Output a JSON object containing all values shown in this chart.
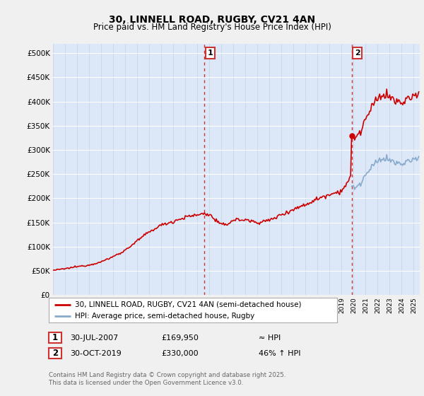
{
  "title_line1": "30, LINNELL ROAD, RUGBY, CV21 4AN",
  "title_line2": "Price paid vs. HM Land Registry's House Price Index (HPI)",
  "ylim": [
    0,
    520000
  ],
  "yticks": [
    0,
    50000,
    100000,
    150000,
    200000,
    250000,
    300000,
    350000,
    400000,
    450000,
    500000
  ],
  "ytick_labels": [
    "£0",
    "£50K",
    "£100K",
    "£150K",
    "£200K",
    "£250K",
    "£300K",
    "£350K",
    "£400K",
    "£450K",
    "£500K"
  ],
  "fig_bg_color": "#f0f0f0",
  "plot_bg_color": "#dce8f8",
  "grid_color": "#ffffff",
  "line1_color": "#cc0000",
  "line2_color": "#88aacc",
  "vline_color": "#cc3333",
  "point1_date_num": 2007.583,
  "point1_value": 169950,
  "point2_date_num": 2019.833,
  "point2_value": 330000,
  "legend_label1": "30, LINNELL ROAD, RUGBY, CV21 4AN (semi-detached house)",
  "legend_label2": "HPI: Average price, semi-detached house, Rugby",
  "annotation1_date": "30-JUL-2007",
  "annotation1_price": "£169,950",
  "annotation1_hpi": "≈ HPI",
  "annotation2_date": "30-OCT-2019",
  "annotation2_price": "£330,000",
  "annotation2_hpi": "46% ↑ HPI",
  "footer": "Contains HM Land Registry data © Crown copyright and database right 2025.\nThis data is licensed under the Open Government Licence v3.0.",
  "xmin": 1995.0,
  "xmax": 2025.5
}
